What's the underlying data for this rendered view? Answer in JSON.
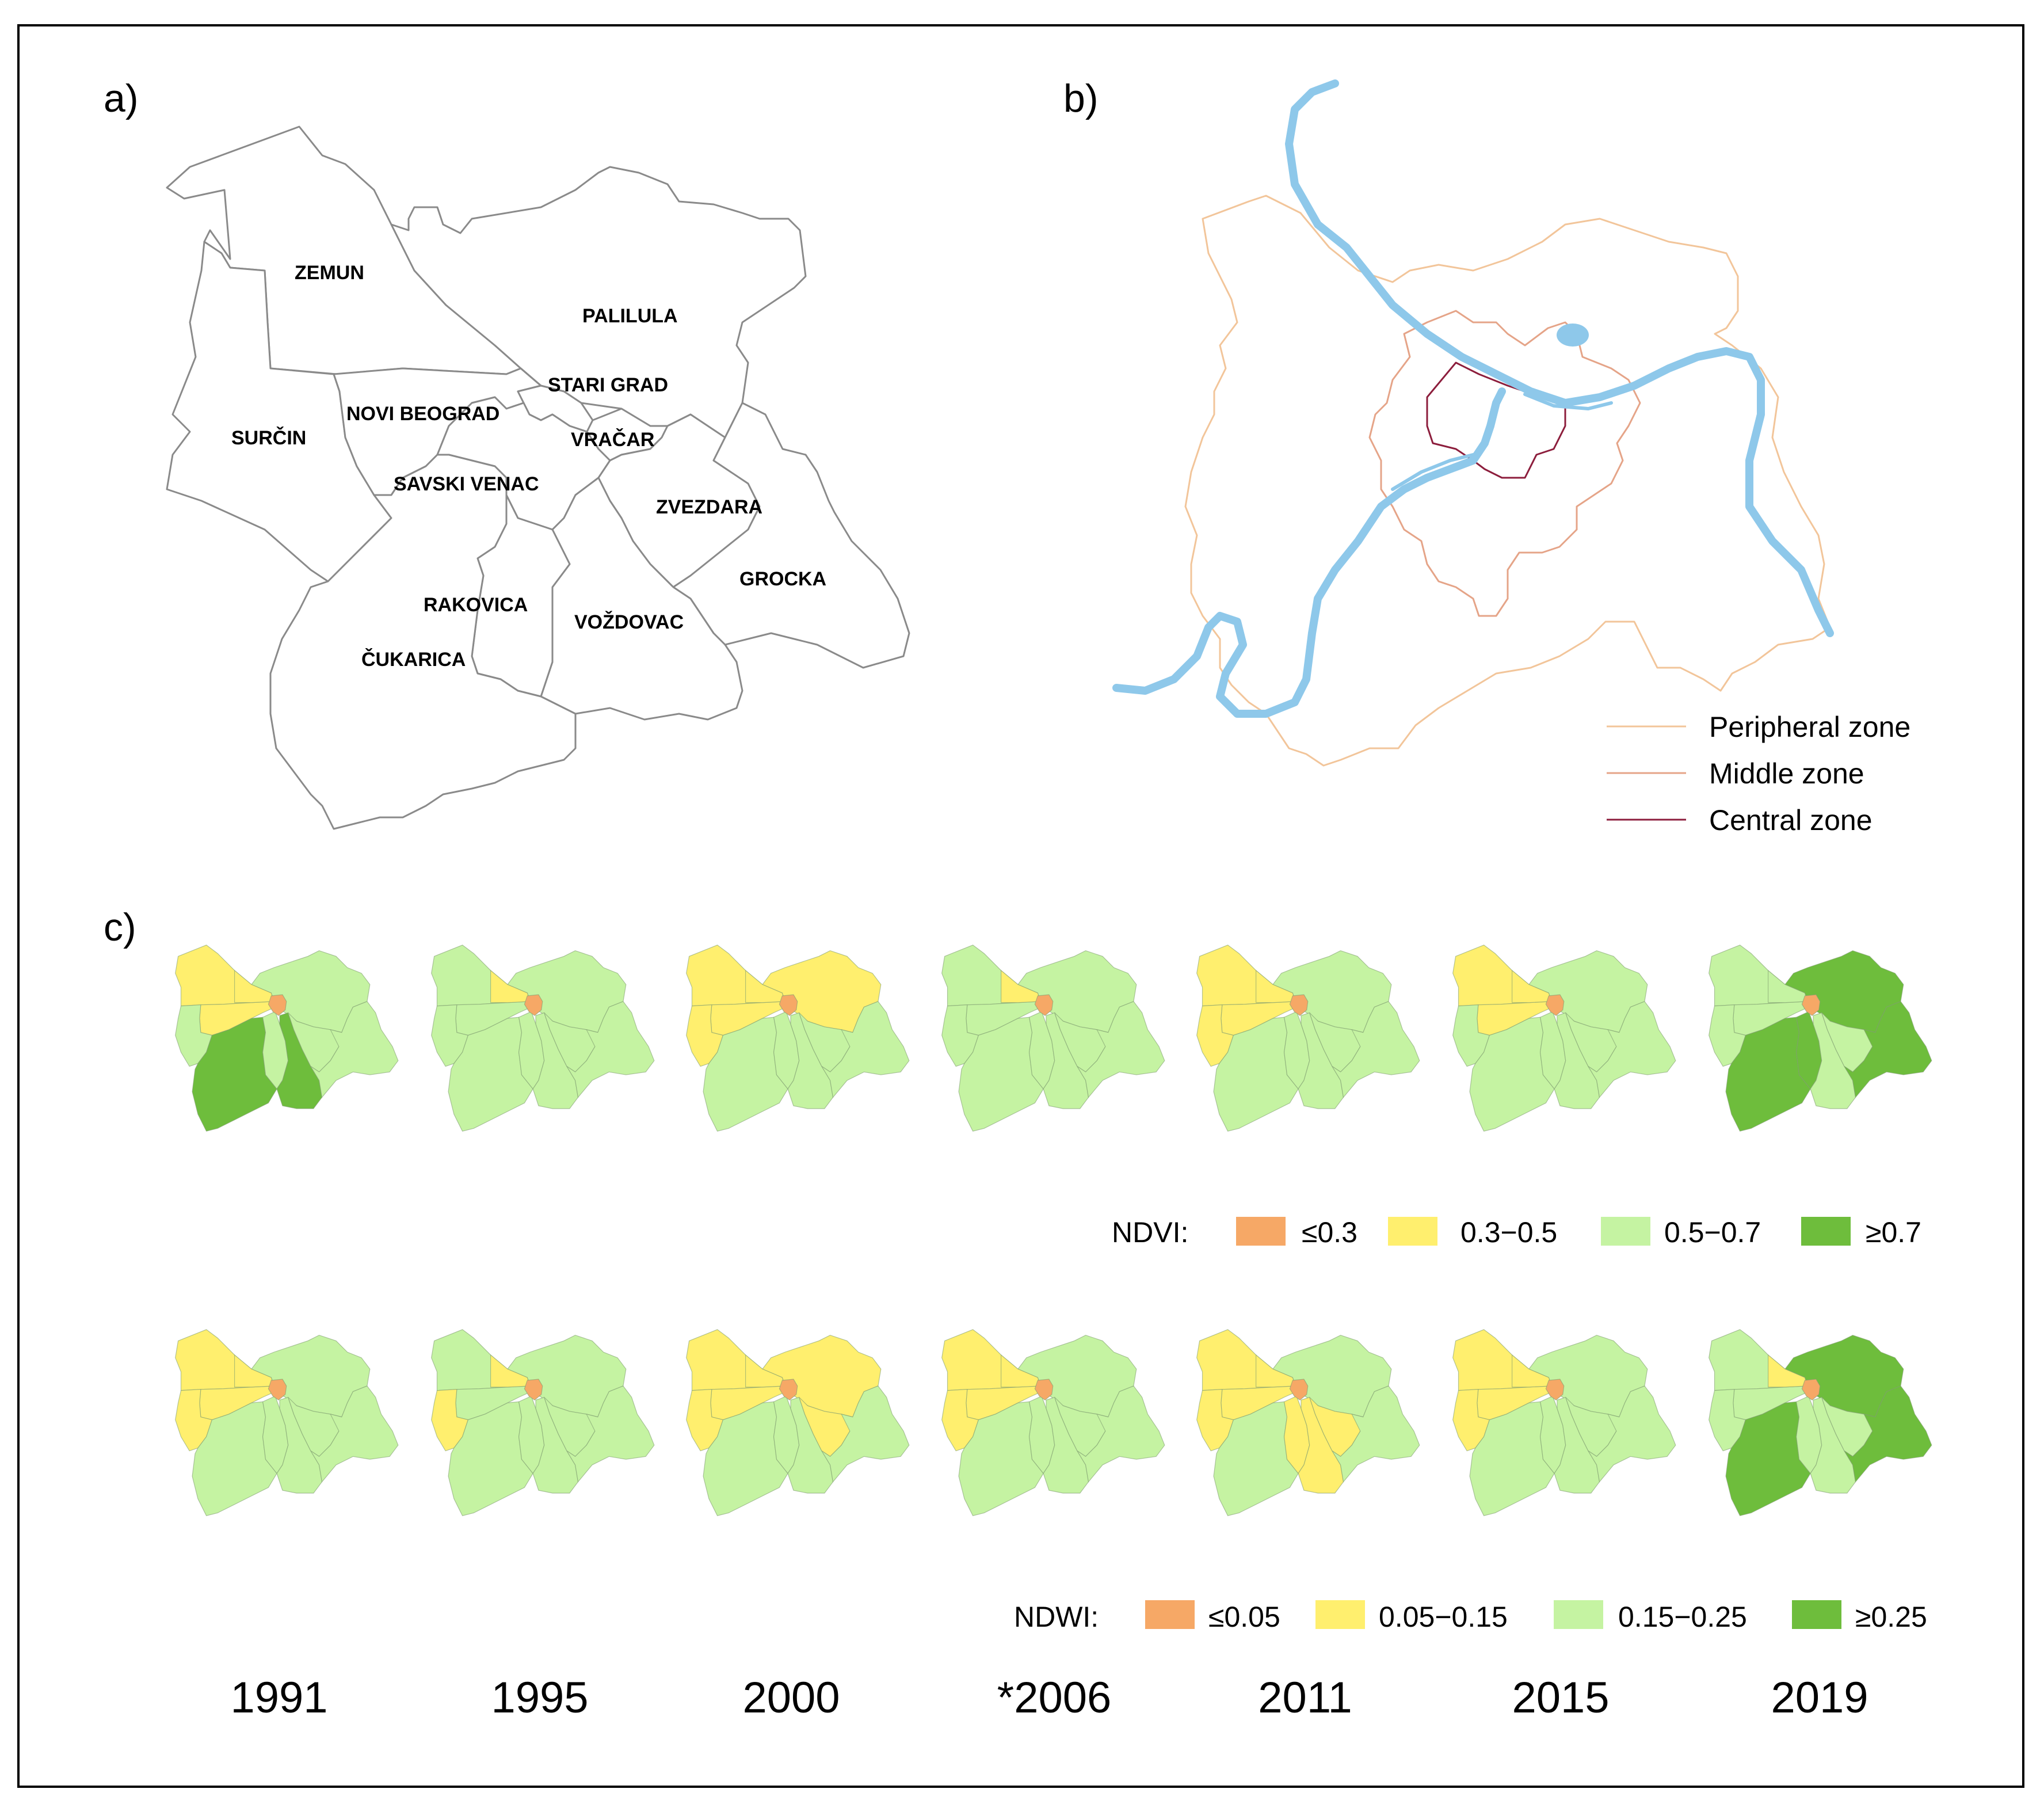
{
  "panels": {
    "a": "a)",
    "b": "b)",
    "c": "c)"
  },
  "districts": [
    {
      "name": "ZEMUN"
    },
    {
      "name": "PALILULA"
    },
    {
      "name": "STARI GRAD"
    },
    {
      "name": "NOVI BEOGRAD"
    },
    {
      "name": "SURČIN"
    },
    {
      "name": "VRAČAR"
    },
    {
      "name": "SAVSKI VENAC"
    },
    {
      "name": "ZVEZDARA"
    },
    {
      "name": "GROCKA"
    },
    {
      "name": "RAKOVICA"
    },
    {
      "name": "VOŽDOVAC"
    },
    {
      "name": "ČUKARICA"
    }
  ],
  "zones_legend": [
    {
      "label": "Peripheral zone",
      "color": "#f2c59a"
    },
    {
      "label": "Middle zone",
      "color": "#e5a488"
    },
    {
      "label": "Central zone",
      "color": "#8c1d3c"
    }
  ],
  "river_color": "#8ec8ea",
  "classes": {
    "c1": "#f6a866",
    "c2": "#ffef6e",
    "c3": "#c5f3a2",
    "c4": "#6ebd3c"
  },
  "ndvi": {
    "title": "NDVI:",
    "legend": [
      {
        "label": "≤0.3",
        "color": "#f6a866"
      },
      {
        "label": "0.3−0.5",
        "color": "#ffef6e"
      },
      {
        "label": "0.5−0.7",
        "color": "#c5f3a2"
      },
      {
        "label": "≥0.7",
        "color": "#6ebd3c"
      }
    ],
    "maps": [
      {
        "year": "1991",
        "nw": "c2",
        "nb": "c2",
        "pal": "c3",
        "zem": "c2",
        "sur": "c3",
        "cuk": "c4",
        "rak": "c3",
        "voz": "c4",
        "zve": "c3",
        "gro": "c3",
        "cen": "c1"
      },
      {
        "year": "1995",
        "nw": "c3",
        "nb": "c2",
        "pal": "c3",
        "zem": "c3",
        "sur": "c3",
        "cuk": "c3",
        "rak": "c3",
        "voz": "c3",
        "zve": "c3",
        "gro": "c3",
        "cen": "c1"
      },
      {
        "year": "2000",
        "nw": "c2",
        "nb": "c2",
        "pal": "c2",
        "zem": "c2",
        "sur": "c2",
        "cuk": "c3",
        "rak": "c3",
        "voz": "c3",
        "zve": "c3",
        "gro": "c3",
        "cen": "c1"
      },
      {
        "year": "*2006",
        "nw": "c3",
        "nb": "c2",
        "pal": "c3",
        "zem": "c3",
        "sur": "c3",
        "cuk": "c3",
        "rak": "c3",
        "voz": "c3",
        "zve": "c3",
        "gro": "c3",
        "cen": "c1"
      },
      {
        "year": "2011",
        "nw": "c2",
        "nb": "c2",
        "pal": "c3",
        "zem": "c2",
        "sur": "c2",
        "cuk": "c3",
        "rak": "c3",
        "voz": "c3",
        "zve": "c3",
        "gro": "c3",
        "cen": "c1"
      },
      {
        "year": "2015",
        "nw": "c2",
        "nb": "c2",
        "pal": "c3",
        "zem": "c2",
        "sur": "c3",
        "cuk": "c3",
        "rak": "c3",
        "voz": "c3",
        "zve": "c3",
        "gro": "c3",
        "cen": "c1"
      },
      {
        "year": "2019",
        "nw": "c3",
        "nb": "c3",
        "pal": "c4",
        "zem": "c3",
        "sur": "c3",
        "cuk": "c4",
        "rak": "c4",
        "voz": "c3",
        "zve": "c3",
        "gro": "c4",
        "cen": "c1"
      }
    ]
  },
  "ndwi": {
    "title": "NDWI:",
    "legend": [
      {
        "label": "≤0.05",
        "color": "#f6a866"
      },
      {
        "label": "0.05−0.15",
        "color": "#ffef6e"
      },
      {
        "label": "0.15−0.25",
        "color": "#c5f3a2"
      },
      {
        "label": "≥0.25",
        "color": "#6ebd3c"
      }
    ],
    "maps": [
      {
        "year": "1991",
        "nw": "c2",
        "nb": "c2",
        "pal": "c3",
        "zem": "c2",
        "sur": "c2",
        "cuk": "c3",
        "rak": "c3",
        "voz": "c3",
        "zve": "c3",
        "gro": "c3",
        "cen": "c1"
      },
      {
        "year": "1995",
        "nw": "c3",
        "nb": "c2",
        "pal": "c3",
        "zem": "c3",
        "sur": "c2",
        "cuk": "c3",
        "rak": "c3",
        "voz": "c3",
        "zve": "c3",
        "gro": "c3",
        "cen": "c1"
      },
      {
        "year": "2000",
        "nw": "c2",
        "nb": "c2",
        "pal": "c2",
        "zem": "c2",
        "sur": "c2",
        "cuk": "c3",
        "rak": "c3",
        "voz": "c3",
        "zve": "c2",
        "gro": "c3",
        "cen": "c1"
      },
      {
        "year": "*2006",
        "nw": "c2",
        "nb": "c2",
        "pal": "c3",
        "zem": "c2",
        "sur": "c2",
        "cuk": "c3",
        "rak": "c3",
        "voz": "c3",
        "zve": "c3",
        "gro": "c3",
        "cen": "c1"
      },
      {
        "year": "2011",
        "nw": "c2",
        "nb": "c2",
        "pal": "c3",
        "zem": "c2",
        "sur": "c2",
        "cuk": "c3",
        "rak": "c2",
        "voz": "c2",
        "zve": "c2",
        "gro": "c3",
        "cen": "c1"
      },
      {
        "year": "2015",
        "nw": "c2",
        "nb": "c2",
        "pal": "c3",
        "zem": "c2",
        "sur": "c2",
        "cuk": "c3",
        "rak": "c3",
        "voz": "c3",
        "zve": "c3",
        "gro": "c3",
        "cen": "c1"
      },
      {
        "year": "2019",
        "nw": "c3",
        "nb": "c2",
        "pal": "c4",
        "zem": "c3",
        "sur": "c3",
        "cuk": "c4",
        "rak": "c3",
        "voz": "c3",
        "zve": "c3",
        "gro": "c4",
        "cen": "c1"
      }
    ]
  }
}
